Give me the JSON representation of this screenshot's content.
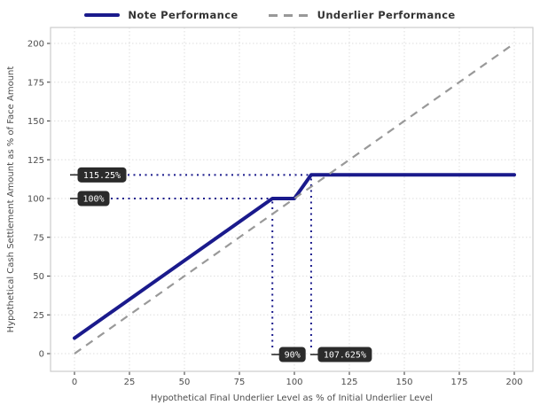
{
  "chart_data": {
    "type": "line",
    "title": "",
    "xlabel": "Hypothetical Final Underlier Level as % of Initial Underlier Level",
    "ylabel": "Hypothetical Cash Settlement Amount as % of Face Amount",
    "xlim": [
      0,
      200
    ],
    "ylim": [
      0,
      200
    ],
    "xticks": [
      0,
      25,
      50,
      75,
      100,
      125,
      150,
      175,
      200
    ],
    "yticks": [
      0,
      25,
      50,
      75,
      100,
      125,
      150,
      175,
      200
    ],
    "grid": "dotted",
    "legend_position": "top-center",
    "series": [
      {
        "name": "Note Performance",
        "color": "#1a1a8c",
        "style": "solid",
        "width": 4,
        "points": [
          [
            0,
            10
          ],
          [
            90,
            100
          ],
          [
            100,
            100
          ],
          [
            107.625,
            115.25
          ],
          [
            200,
            115.25
          ]
        ]
      },
      {
        "name": "Underlier Performance",
        "color": "#999999",
        "style": "dashed",
        "width": 2.2,
        "points": [
          [
            0,
            0
          ],
          [
            200,
            200
          ]
        ]
      }
    ],
    "annotations": {
      "y_axis_labels": [
        {
          "text": "115.25%",
          "y": 115.25,
          "x_extent": 107.625
        },
        {
          "text": "100%",
          "y": 100,
          "x_extent": 90
        }
      ],
      "x_axis_labels": [
        {
          "text": "90%",
          "x": 90,
          "y_extent": 100
        },
        {
          "text": "107.625%",
          "x": 107.625,
          "y_extent": 115.25
        }
      ]
    },
    "colors": {
      "note_line": "#1a1a8c",
      "underlier_line": "#999999",
      "grid": "#dedede",
      "plot_border": "#cccccc",
      "tick_mark": "#333333",
      "tick_label": "#4d4d4d",
      "axis_title": "#4d4d4d",
      "legend_text": "#333333",
      "annotation_box_bg": "#2b2b2b",
      "annotation_box_text": "#ffffff",
      "annotation_dotted": "#1a1a8c"
    }
  }
}
